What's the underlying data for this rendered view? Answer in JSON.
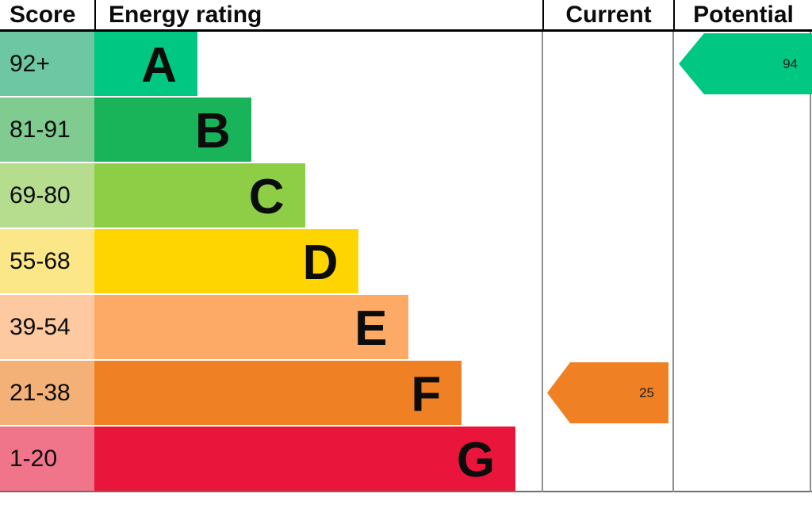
{
  "header": {
    "score_label": "Score",
    "rating_label": "Energy rating",
    "current_label": "Current",
    "potential_label": "Potential"
  },
  "chart_data": {
    "type": "bar",
    "subtype": "epc_energy_rating",
    "title": "Energy rating",
    "bands": [
      {
        "letter": "A",
        "score_range": "92+",
        "color": "#00c781",
        "tint": "#6ec7a3",
        "bar_pct": 23
      },
      {
        "letter": "B",
        "score_range": "81-91",
        "color": "#19b459",
        "tint": "#7fcb90",
        "bar_pct": 35
      },
      {
        "letter": "C",
        "score_range": "69-80",
        "color": "#8dce46",
        "tint": "#b6dc8e",
        "bar_pct": 47
      },
      {
        "letter": "D",
        "score_range": "55-68",
        "color": "#ffd500",
        "tint": "#fbe788",
        "bar_pct": 59
      },
      {
        "letter": "E",
        "score_range": "39-54",
        "color": "#fcaa65",
        "tint": "#fcc9a0",
        "bar_pct": 70
      },
      {
        "letter": "F",
        "score_range": "21-38",
        "color": "#ef8023",
        "tint": "#f3b077",
        "bar_pct": 82
      },
      {
        "letter": "G",
        "score_range": "1-20",
        "color": "#e9153b",
        "tint": "#f0758b",
        "bar_pct": 94
      }
    ],
    "current": {
      "value": "25",
      "band": "F",
      "color": "#ef8023"
    },
    "potential": {
      "value": "94",
      "band": "A",
      "color": "#00c781"
    }
  }
}
